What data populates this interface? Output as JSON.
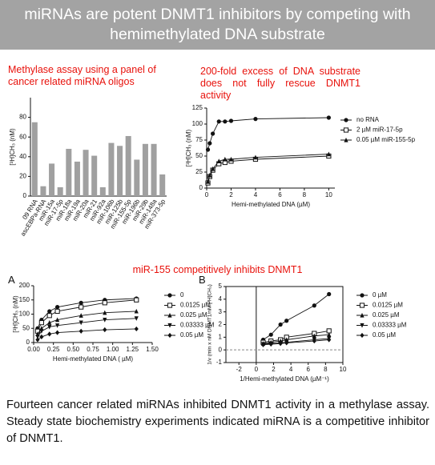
{
  "header": "miRNAs are potent DNMT1 inhibitors by competing with hemimethylated DNA substrate",
  "section_title": "miR-155 competitively inhibits DNMT1",
  "caption": "Fourteen cancer related miRNAs inhibited DNMT1 activity in a methylase assay. Steady state biochemistry experiments indicated miRNA is a competitive inhibitor of DNMT1.",
  "chart_data": [
    {
      "type": "bar",
      "title": "Methylase assay using a panel of cancer related miRNA oligos",
      "ylabel": "[³H]CH₃ (nM)",
      "color": "#a0a0a0",
      "categories": [
        "09 RNA",
        "ascEBPa-RNA",
        "miR-15a",
        "miR-17-5p",
        "miR-18a",
        "miR-19a",
        "miR-20a",
        "miR-21",
        "miR-92a",
        "miR-106b",
        "miR-125b",
        "miR-155-5p",
        "miR-196b",
        "miR-29b",
        "miR-148a",
        "miR-373-5p"
      ],
      "values": [
        75,
        10,
        33,
        9,
        48,
        35,
        47,
        41,
        9,
        54,
        51,
        61,
        37,
        53,
        53,
        22
      ],
      "ylim": [
        0,
        100
      ],
      "yticks": [
        0,
        20,
        40,
        60,
        80
      ]
    },
    {
      "type": "line",
      "title": "200-fold excess of DNA substrate does not fully rescue DNMT1 activity",
      "xlabel": "Hemi-methylated DNA (µM)",
      "ylabel": "[³H]CH₃ (nM)",
      "x": [
        0.1,
        0.25,
        0.5,
        1,
        1.5,
        2,
        4,
        10
      ],
      "series": [
        {
          "name": "no RNA",
          "color": "#111111",
          "marker": "circle",
          "values": [
            60,
            70,
            85,
            104,
            104,
            105,
            108,
            110
          ]
        },
        {
          "name": "2 µM miR-17-5p",
          "color": "#111111",
          "marker": "square-open",
          "values": [
            8,
            18,
            28,
            38,
            40,
            42,
            45,
            50
          ]
        },
        {
          "name": "0.05 µM miR-155-5p",
          "color": "#111111",
          "marker": "triangle",
          "values": [
            10,
            20,
            30,
            42,
            45,
            45,
            48,
            53
          ]
        }
      ],
      "xlim": [
        0,
        10.5
      ],
      "xticks": [
        0,
        2,
        4,
        6,
        8,
        10
      ],
      "ylim": [
        0,
        125
      ],
      "yticks": [
        0,
        25,
        50,
        75,
        100,
        125
      ]
    },
    {
      "type": "line",
      "panel": "A",
      "xlabel": "Hemi-methylated DNA ( µM)",
      "ylabel": "[³H]CH₃ (nM)",
      "x": [
        0.05,
        0.1,
        0.2,
        0.3,
        0.6,
        0.9,
        1.3
      ],
      "series": [
        {
          "name": "0",
          "color": "#111111",
          "marker": "circle",
          "values": [
            50,
            80,
            110,
            125,
            140,
            150,
            155
          ]
        },
        {
          "name": "0.0125 µM",
          "color": "#111111",
          "marker": "square-open",
          "values": [
            40,
            70,
            95,
            110,
            125,
            140,
            150
          ]
        },
        {
          "name": "0.025 µM",
          "color": "#111111",
          "marker": "triangle",
          "values": [
            30,
            50,
            70,
            80,
            95,
            105,
            110
          ]
        },
        {
          "name": "0.03333 µM",
          "color": "#111111",
          "marker": "triangle-down",
          "values": [
            20,
            40,
            55,
            60,
            70,
            80,
            85
          ]
        },
        {
          "name": "0.05 µM",
          "color": "#111111",
          "marker": "diamond",
          "values": [
            10,
            20,
            30,
            35,
            40,
            45,
            48
          ]
        }
      ],
      "xlim": [
        0,
        1.5
      ],
      "xticks": [
        {
          "value": 0,
          "label": "0.00"
        },
        {
          "value": 0.25,
          "label": "0.25"
        },
        {
          "value": 0.5,
          "label": "0.50"
        },
        {
          "value": 0.75,
          "label": "0.75"
        },
        {
          "value": 1,
          "label": "1.00"
        },
        {
          "value": 1.25,
          "label": "1.25"
        },
        {
          "value": 1.5,
          "label": "1.50"
        }
      ],
      "ylim": [
        0,
        200
      ],
      "yticks": [
        0,
        50,
        100,
        150,
        200
      ]
    },
    {
      "type": "line",
      "panel": "B",
      "xlabel": "1/Hemi-methylated DNA (µM⁻¹)",
      "ylabel": "1/v (min x nM DNMT1/nM [³H]CH₃)",
      "x": [
        0.8,
        1.7,
        2.8,
        3.5,
        6.7,
        8.4
      ],
      "series": [
        {
          "name": "0 µM",
          "color": "#111111",
          "marker": "circle",
          "values": [
            0.8,
            1.2,
            2.0,
            2.3,
            3.5,
            4.4
          ]
        },
        {
          "name": "0.0125 µM",
          "color": "#111111",
          "marker": "square-open",
          "values": [
            0.6,
            0.7,
            0.8,
            1.0,
            1.3,
            1.5
          ]
        },
        {
          "name": "0.025 µM",
          "color": "#111111",
          "marker": "triangle",
          "values": [
            0.5,
            0.6,
            0.7,
            0.8,
            1.1,
            1.2
          ]
        },
        {
          "name": "0.03333 µM",
          "color": "#111111",
          "marker": "triangle-down",
          "values": [
            0.45,
            0.5,
            0.55,
            0.6,
            0.8,
            0.9
          ]
        },
        {
          "name": "0.05 µM",
          "color": "#111111",
          "marker": "diamond",
          "values": [
            0.4,
            0.45,
            0.5,
            0.55,
            0.7,
            0.8
          ]
        }
      ],
      "xlim": [
        -3.5,
        10
      ],
      "xticks": [
        -2,
        0,
        2,
        4,
        6,
        8,
        10
      ],
      "ylim": [
        -1,
        5
      ],
      "yticks": [
        -1,
        0,
        1,
        2,
        3,
        4,
        5
      ],
      "frame": true
    }
  ]
}
